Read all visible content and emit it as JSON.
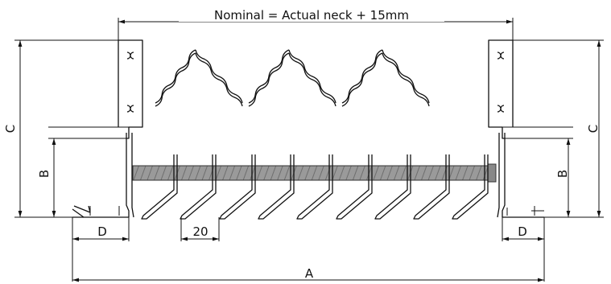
{
  "labels": {
    "nominal": "Nominal = Actual neck + 15mm",
    "a": "A",
    "b_left": "B",
    "b_right": "B",
    "c_left": "C",
    "c_right": "C",
    "d_left": "D",
    "d_right": "D",
    "pitch": "20"
  }
}
